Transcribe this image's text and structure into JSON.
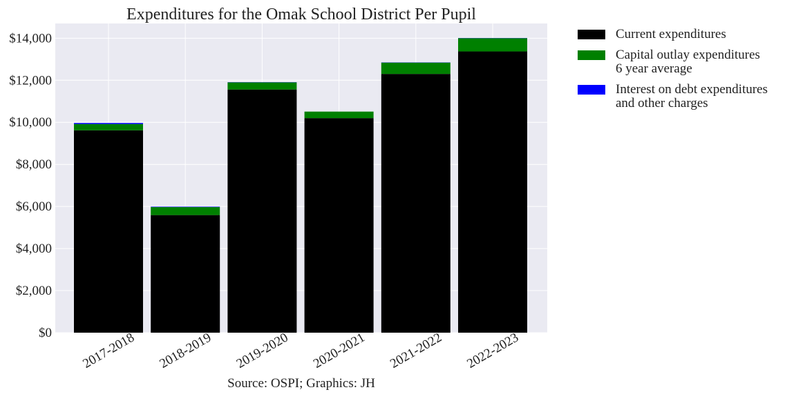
{
  "chart_data": {
    "type": "bar",
    "stacked": true,
    "title": "Expenditures for the Omak School District Per Pupil",
    "caption": "Source: OSPI; Graphics: JH",
    "categories": [
      "2017-2018",
      "2018-2019",
      "2019-2020",
      "2020-2021",
      "2021-2022",
      "2022-2023"
    ],
    "series": [
      {
        "name": "Current expenditures",
        "color": "#000000",
        "values": [
          9620,
          5590,
          11560,
          10200,
          12300,
          13370
        ]
      },
      {
        "name": "Capital outlay expenditures\n6 year average",
        "color": "#008000",
        "values": [
          300,
          380,
          340,
          310,
          540,
          630
        ]
      },
      {
        "name": "Interest on debt expenditures\nand other charges",
        "color": "#0000ff",
        "values": [
          50,
          20,
          10,
          0,
          10,
          10
        ]
      }
    ],
    "ylim": [
      0,
      14700
    ],
    "yticks": [
      0,
      2000,
      4000,
      6000,
      8000,
      10000,
      12000,
      14000
    ],
    "ytick_labels": [
      "$0",
      "$2,000",
      "$4,000",
      "$6,000",
      "$8,000",
      "$10,000",
      "$12,000",
      "$14,000"
    ],
    "xlabel": "",
    "ylabel": "",
    "grid": true,
    "legend_position": "outside-right",
    "plot_background": "#eaeaf2"
  }
}
